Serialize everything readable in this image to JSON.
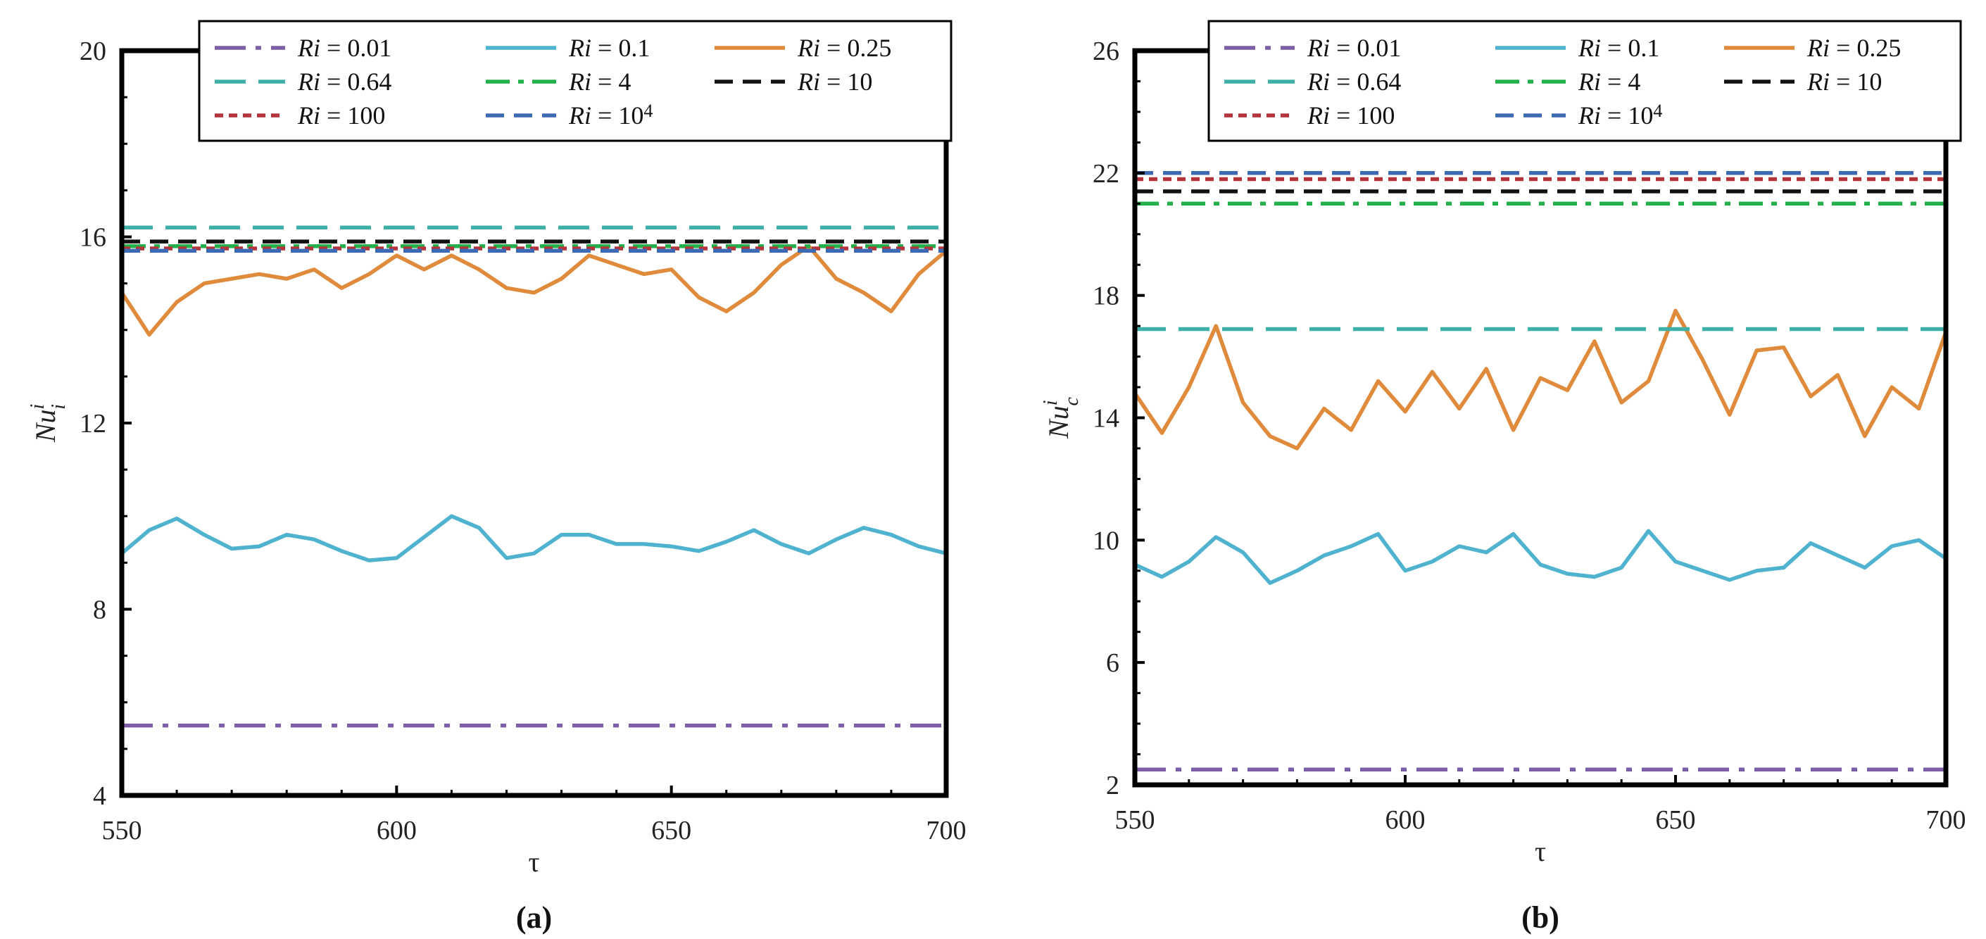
{
  "legend": {
    "prefix": "Ri",
    "eq": " = ",
    "entries": [
      {
        "key": "ri001",
        "value": "0.01",
        "sup": "",
        "color": "#7b5ea7",
        "dash": "long-dashdot"
      },
      {
        "key": "ri01",
        "value": "0.1",
        "sup": "",
        "color": "#4fb3cf",
        "dash": "solid"
      },
      {
        "key": "ri025",
        "value": "0.25",
        "sup": "",
        "color": "#e08a3c",
        "dash": "solid"
      },
      {
        "key": "ri064",
        "value": "0.64",
        "sup": "",
        "color": "#3fb0a8",
        "dash": "long-dash"
      },
      {
        "key": "ri4",
        "value": "4",
        "sup": "",
        "color": "#22b04a",
        "dash": "dashdot"
      },
      {
        "key": "ri10",
        "value": "10",
        "sup": "",
        "color": "#111111",
        "dash": "dash"
      },
      {
        "key": "ri100",
        "value": "100",
        "sup": "",
        "color": "#b5343a",
        "dash": "short-dash"
      },
      {
        "key": "ri1e4",
        "value": "10",
        "sup": "4",
        "color": "#3d6bb3",
        "dash": "dash"
      }
    ]
  },
  "chart_data": [
    {
      "type": "line",
      "panel": "a",
      "panel_label": "(a)",
      "xlabel": "τ",
      "ylabel_main": "Nu",
      "ylabel_sup": "i",
      "ylabel_sub": "i",
      "xlim": [
        550,
        700
      ],
      "ylim": [
        4,
        20
      ],
      "xticks": [
        "550",
        "600",
        "650",
        "700"
      ],
      "yticks": [
        "4",
        "8",
        "12",
        "16",
        "20"
      ],
      "x": [
        550,
        555,
        560,
        565,
        570,
        575,
        580,
        585,
        590,
        595,
        600,
        605,
        610,
        615,
        620,
        625,
        630,
        635,
        640,
        645,
        650,
        655,
        660,
        665,
        670,
        675,
        680,
        685,
        690,
        695,
        700
      ],
      "series": [
        {
          "key": "ri001",
          "values": [
            5.5,
            5.5,
            5.5,
            5.5,
            5.5,
            5.5,
            5.5,
            5.5,
            5.5,
            5.5,
            5.5,
            5.5,
            5.5,
            5.5,
            5.5,
            5.5,
            5.5,
            5.5,
            5.5,
            5.5,
            5.5,
            5.5,
            5.5,
            5.5,
            5.5,
            5.5,
            5.5,
            5.5,
            5.5,
            5.5,
            5.5
          ]
        },
        {
          "key": "ri01",
          "values": [
            9.2,
            9.7,
            9.95,
            9.6,
            9.3,
            9.35,
            9.6,
            9.5,
            9.25,
            9.05,
            9.1,
            9.55,
            10.0,
            9.75,
            9.1,
            9.2,
            9.6,
            9.6,
            9.4,
            9.4,
            9.35,
            9.25,
            9.45,
            9.7,
            9.4,
            9.2,
            9.5,
            9.75,
            9.6,
            9.35,
            9.2
          ]
        },
        {
          "key": "ri025",
          "values": [
            14.8,
            13.9,
            14.6,
            15.0,
            15.1,
            15.2,
            15.1,
            15.3,
            14.9,
            15.2,
            15.6,
            15.3,
            15.6,
            15.3,
            14.9,
            14.8,
            15.1,
            15.6,
            15.4,
            15.2,
            15.3,
            14.7,
            14.4,
            14.8,
            15.4,
            15.8,
            15.1,
            14.8,
            14.4,
            15.2,
            15.7
          ]
        },
        {
          "key": "ri064",
          "values": [
            16.2,
            16.2,
            16.2,
            16.2,
            16.2,
            16.2,
            16.2,
            16.2,
            16.2,
            16.2,
            16.2,
            16.2,
            16.2,
            16.2,
            16.2,
            16.2,
            16.2,
            16.2,
            16.2,
            16.2,
            16.2,
            16.2,
            16.2,
            16.2,
            16.2,
            16.2,
            16.2,
            16.2,
            16.2,
            16.2,
            16.2
          ]
        },
        {
          "key": "ri4",
          "values": [
            15.8,
            15.8,
            15.8,
            15.8,
            15.8,
            15.8,
            15.8,
            15.8,
            15.8,
            15.8,
            15.8,
            15.8,
            15.8,
            15.8,
            15.8,
            15.8,
            15.8,
            15.8,
            15.8,
            15.8,
            15.8,
            15.8,
            15.8,
            15.8,
            15.8,
            15.8,
            15.8,
            15.8,
            15.8,
            15.8,
            15.8
          ]
        },
        {
          "key": "ri10",
          "values": [
            15.9,
            15.9,
            15.9,
            15.9,
            15.9,
            15.9,
            15.9,
            15.9,
            15.9,
            15.9,
            15.9,
            15.9,
            15.9,
            15.9,
            15.9,
            15.9,
            15.9,
            15.9,
            15.9,
            15.9,
            15.9,
            15.9,
            15.9,
            15.9,
            15.9,
            15.9,
            15.9,
            15.9,
            15.9,
            15.9,
            15.9
          ]
        },
        {
          "key": "ri100",
          "values": [
            15.75,
            15.75,
            15.75,
            15.75,
            15.75,
            15.75,
            15.75,
            15.75,
            15.75,
            15.75,
            15.75,
            15.75,
            15.75,
            15.75,
            15.75,
            15.75,
            15.75,
            15.75,
            15.75,
            15.75,
            15.75,
            15.75,
            15.75,
            15.75,
            15.75,
            15.75,
            15.75,
            15.75,
            15.75,
            15.75,
            15.75
          ]
        },
        {
          "key": "ri1e4",
          "values": [
            15.7,
            15.7,
            15.7,
            15.7,
            15.7,
            15.7,
            15.7,
            15.7,
            15.7,
            15.7,
            15.7,
            15.7,
            15.7,
            15.7,
            15.7,
            15.7,
            15.7,
            15.7,
            15.7,
            15.7,
            15.7,
            15.7,
            15.7,
            15.7,
            15.7,
            15.7,
            15.7,
            15.7,
            15.7,
            15.7,
            15.7
          ]
        }
      ]
    },
    {
      "type": "line",
      "panel": "b",
      "panel_label": "(b)",
      "xlabel": "τ",
      "ylabel_main": "Nu",
      "ylabel_sup": "i",
      "ylabel_sub": "c",
      "xlim": [
        550,
        700
      ],
      "ylim": [
        2,
        26
      ],
      "xticks": [
        "550",
        "600",
        "650",
        "700"
      ],
      "yticks": [
        "2",
        "6",
        "10",
        "14",
        "18",
        "22",
        "26"
      ],
      "x": [
        550,
        555,
        560,
        565,
        570,
        575,
        580,
        585,
        590,
        595,
        600,
        605,
        610,
        615,
        620,
        625,
        630,
        635,
        640,
        645,
        650,
        655,
        660,
        665,
        670,
        675,
        680,
        685,
        690,
        695,
        700
      ],
      "series": [
        {
          "key": "ri001",
          "values": [
            2.5,
            2.5,
            2.5,
            2.5,
            2.5,
            2.5,
            2.5,
            2.5,
            2.5,
            2.5,
            2.5,
            2.5,
            2.5,
            2.5,
            2.5,
            2.5,
            2.5,
            2.5,
            2.5,
            2.5,
            2.5,
            2.5,
            2.5,
            2.5,
            2.5,
            2.5,
            2.5,
            2.5,
            2.5,
            2.5,
            2.5
          ]
        },
        {
          "key": "ri01",
          "values": [
            9.2,
            8.8,
            9.3,
            10.1,
            9.6,
            8.6,
            9.0,
            9.5,
            9.8,
            10.2,
            9.0,
            9.3,
            9.8,
            9.6,
            10.2,
            9.2,
            8.9,
            8.8,
            9.1,
            10.3,
            9.3,
            9.0,
            8.7,
            9.0,
            9.1,
            9.9,
            9.5,
            9.1,
            9.8,
            10.0,
            9.4
          ]
        },
        {
          "key": "ri025",
          "values": [
            14.8,
            13.5,
            15.0,
            17.0,
            14.5,
            13.4,
            13.0,
            14.3,
            13.6,
            15.2,
            14.2,
            15.5,
            14.3,
            15.6,
            13.6,
            15.3,
            14.9,
            16.5,
            14.5,
            15.2,
            17.5,
            15.9,
            14.1,
            16.2,
            16.3,
            14.7,
            15.4,
            13.4,
            15.0,
            14.3,
            16.8
          ]
        },
        {
          "key": "ri064",
          "values": [
            16.9,
            16.9,
            16.9,
            16.9,
            16.9,
            16.9,
            16.9,
            16.9,
            16.9,
            16.9,
            16.9,
            16.9,
            16.9,
            16.9,
            16.9,
            16.9,
            16.9,
            16.9,
            16.9,
            16.9,
            16.9,
            16.9,
            16.9,
            16.9,
            16.9,
            16.9,
            16.9,
            16.9,
            16.9,
            16.9,
            16.9
          ]
        },
        {
          "key": "ri4",
          "values": [
            21.0,
            21.0,
            21.0,
            21.0,
            21.0,
            21.0,
            21.0,
            21.0,
            21.0,
            21.0,
            21.0,
            21.0,
            21.0,
            21.0,
            21.0,
            21.0,
            21.0,
            21.0,
            21.0,
            21.0,
            21.0,
            21.0,
            21.0,
            21.0,
            21.0,
            21.0,
            21.0,
            21.0,
            21.0,
            21.0,
            21.0
          ]
        },
        {
          "key": "ri10",
          "values": [
            21.4,
            21.4,
            21.4,
            21.4,
            21.4,
            21.4,
            21.4,
            21.4,
            21.4,
            21.4,
            21.4,
            21.4,
            21.4,
            21.4,
            21.4,
            21.4,
            21.4,
            21.4,
            21.4,
            21.4,
            21.4,
            21.4,
            21.4,
            21.4,
            21.4,
            21.4,
            21.4,
            21.4,
            21.4,
            21.4,
            21.4
          ]
        },
        {
          "key": "ri100",
          "values": [
            21.8,
            21.8,
            21.8,
            21.8,
            21.8,
            21.8,
            21.8,
            21.8,
            21.8,
            21.8,
            21.8,
            21.8,
            21.8,
            21.8,
            21.8,
            21.8,
            21.8,
            21.8,
            21.8,
            21.8,
            21.8,
            21.8,
            21.8,
            21.8,
            21.8,
            21.8,
            21.8,
            21.8,
            21.8,
            21.8,
            21.8
          ]
        },
        {
          "key": "ri1e4",
          "values": [
            22.0,
            22.0,
            22.0,
            22.0,
            22.0,
            22.0,
            22.0,
            22.0,
            22.0,
            22.0,
            22.0,
            22.0,
            22.0,
            22.0,
            22.0,
            22.0,
            22.0,
            22.0,
            22.0,
            22.0,
            22.0,
            22.0,
            22.0,
            22.0,
            22.0,
            22.0,
            22.0,
            22.0,
            22.0,
            22.0,
            22.0
          ]
        }
      ]
    }
  ]
}
